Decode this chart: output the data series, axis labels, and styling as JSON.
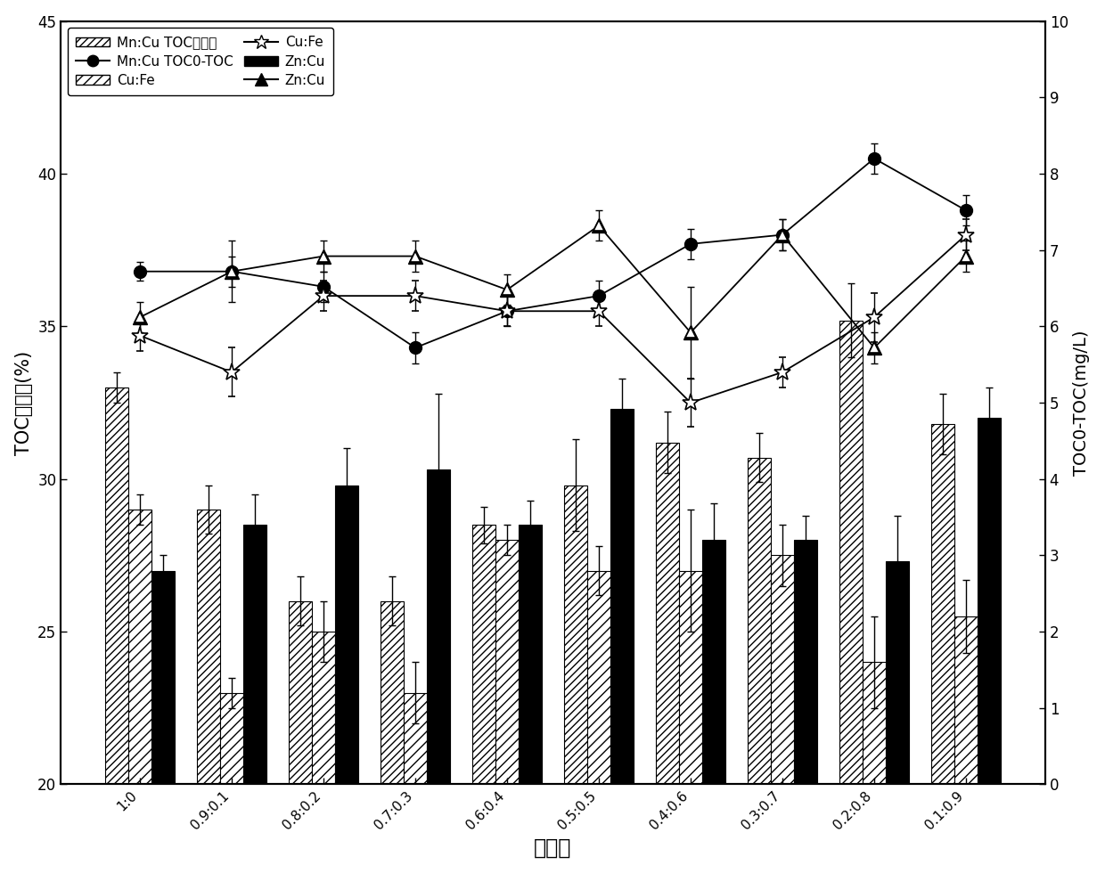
{
  "categories": [
    "1:0",
    "0.9:0.1",
    "0.8:0.2",
    "0.7:0.3",
    "0.6:0.4",
    "0.5:0.5",
    "0.4:0.6",
    "0.3:0.7",
    "0.2:0.8",
    "0.1:0.9"
  ],
  "bar_MnCu": [
    33.0,
    29.0,
    26.0,
    26.0,
    28.5,
    29.8,
    31.2,
    30.7,
    35.2,
    31.8
  ],
  "bar_MnCu_err": [
    0.5,
    0.8,
    0.8,
    0.8,
    0.6,
    1.5,
    1.0,
    0.8,
    1.2,
    1.0
  ],
  "bar_CuFe": [
    29.0,
    23.0,
    25.0,
    23.0,
    28.0,
    27.0,
    27.0,
    27.5,
    24.0,
    25.5
  ],
  "bar_CuFe_err": [
    0.5,
    0.5,
    1.0,
    1.0,
    0.5,
    0.8,
    2.0,
    1.0,
    1.5,
    1.2
  ],
  "bar_ZnCu": [
    27.0,
    28.5,
    29.8,
    30.3,
    28.5,
    32.3,
    28.0,
    28.0,
    27.3,
    32.0
  ],
  "bar_ZnCu_err": [
    0.5,
    1.0,
    1.2,
    2.5,
    0.8,
    1.0,
    1.2,
    0.8,
    1.5,
    1.0
  ],
  "line_MnCu": [
    36.8,
    36.8,
    36.3,
    34.3,
    35.5,
    36.0,
    37.7,
    38.0,
    40.5,
    38.8
  ],
  "line_MnCu_err": [
    0.3,
    0.5,
    0.5,
    0.5,
    0.5,
    0.5,
    0.5,
    0.5,
    0.5,
    0.5
  ],
  "line_CuFe": [
    34.7,
    33.5,
    36.0,
    36.0,
    35.5,
    35.5,
    32.5,
    33.5,
    35.3,
    38.0
  ],
  "line_CuFe_err": [
    0.5,
    0.8,
    0.5,
    0.5,
    0.5,
    0.5,
    0.8,
    0.5,
    0.8,
    0.5
  ],
  "line_ZnCu": [
    35.3,
    36.8,
    37.3,
    37.3,
    36.2,
    38.3,
    34.8,
    38.0,
    34.3,
    37.3
  ],
  "line_ZnCu_err": [
    0.5,
    1.0,
    0.5,
    0.5,
    0.5,
    0.5,
    1.5,
    0.5,
    0.5,
    0.5
  ],
  "ylabel_left": "TOC去除率(%)",
  "ylabel_right": "TOC0-TOC(mg/L)",
  "xlabel": "摩尔比",
  "ylim_left": [
    20,
    45
  ],
  "ylim_right": [
    0,
    10
  ],
  "yticks_left": [
    20,
    25,
    30,
    35,
    40,
    45
  ],
  "yticks_right": [
    0,
    1,
    2,
    3,
    4,
    5,
    6,
    7,
    8,
    9,
    10
  ],
  "legend_bar1": "Mn:Cu TOC去除率",
  "legend_bar2": "Cu:Fe",
  "legend_bar3": "Zn:Cu",
  "legend_line1": "Mn:Cu TOC0-TOC",
  "legend_line2": "Cu:Fe",
  "legend_line3": "Zn:Cu",
  "background_color": "#ffffff"
}
